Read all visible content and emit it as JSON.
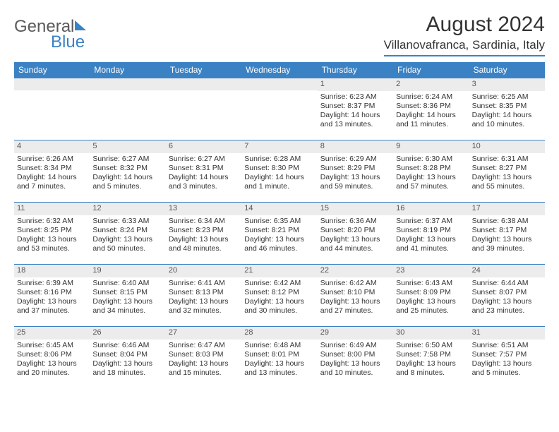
{
  "brand": {
    "part1": "General",
    "part2": "Blue"
  },
  "title": "August 2024",
  "location": "Villanovafranca, Sardinia, Italy",
  "colors": {
    "accent": "#3b82c4",
    "dayStripe": "#ececec",
    "text": "#333333",
    "logoGray": "#5a5a5a",
    "background": "#ffffff"
  },
  "weekdays": [
    "Sunday",
    "Monday",
    "Tuesday",
    "Wednesday",
    "Thursday",
    "Friday",
    "Saturday"
  ],
  "startOffset": 4,
  "days": [
    {
      "n": 1,
      "sr": "6:23 AM",
      "ss": "8:37 PM",
      "dl": "14 hours and 13 minutes."
    },
    {
      "n": 2,
      "sr": "6:24 AM",
      "ss": "8:36 PM",
      "dl": "14 hours and 11 minutes."
    },
    {
      "n": 3,
      "sr": "6:25 AM",
      "ss": "8:35 PM",
      "dl": "14 hours and 10 minutes."
    },
    {
      "n": 4,
      "sr": "6:26 AM",
      "ss": "8:34 PM",
      "dl": "14 hours and 7 minutes."
    },
    {
      "n": 5,
      "sr": "6:27 AM",
      "ss": "8:32 PM",
      "dl": "14 hours and 5 minutes."
    },
    {
      "n": 6,
      "sr": "6:27 AM",
      "ss": "8:31 PM",
      "dl": "14 hours and 3 minutes."
    },
    {
      "n": 7,
      "sr": "6:28 AM",
      "ss": "8:30 PM",
      "dl": "14 hours and 1 minute."
    },
    {
      "n": 8,
      "sr": "6:29 AM",
      "ss": "8:29 PM",
      "dl": "13 hours and 59 minutes."
    },
    {
      "n": 9,
      "sr": "6:30 AM",
      "ss": "8:28 PM",
      "dl": "13 hours and 57 minutes."
    },
    {
      "n": 10,
      "sr": "6:31 AM",
      "ss": "8:27 PM",
      "dl": "13 hours and 55 minutes."
    },
    {
      "n": 11,
      "sr": "6:32 AM",
      "ss": "8:25 PM",
      "dl": "13 hours and 53 minutes."
    },
    {
      "n": 12,
      "sr": "6:33 AM",
      "ss": "8:24 PM",
      "dl": "13 hours and 50 minutes."
    },
    {
      "n": 13,
      "sr": "6:34 AM",
      "ss": "8:23 PM",
      "dl": "13 hours and 48 minutes."
    },
    {
      "n": 14,
      "sr": "6:35 AM",
      "ss": "8:21 PM",
      "dl": "13 hours and 46 minutes."
    },
    {
      "n": 15,
      "sr": "6:36 AM",
      "ss": "8:20 PM",
      "dl": "13 hours and 44 minutes."
    },
    {
      "n": 16,
      "sr": "6:37 AM",
      "ss": "8:19 PM",
      "dl": "13 hours and 41 minutes."
    },
    {
      "n": 17,
      "sr": "6:38 AM",
      "ss": "8:17 PM",
      "dl": "13 hours and 39 minutes."
    },
    {
      "n": 18,
      "sr": "6:39 AM",
      "ss": "8:16 PM",
      "dl": "13 hours and 37 minutes."
    },
    {
      "n": 19,
      "sr": "6:40 AM",
      "ss": "8:15 PM",
      "dl": "13 hours and 34 minutes."
    },
    {
      "n": 20,
      "sr": "6:41 AM",
      "ss": "8:13 PM",
      "dl": "13 hours and 32 minutes."
    },
    {
      "n": 21,
      "sr": "6:42 AM",
      "ss": "8:12 PM",
      "dl": "13 hours and 30 minutes."
    },
    {
      "n": 22,
      "sr": "6:42 AM",
      "ss": "8:10 PM",
      "dl": "13 hours and 27 minutes."
    },
    {
      "n": 23,
      "sr": "6:43 AM",
      "ss": "8:09 PM",
      "dl": "13 hours and 25 minutes."
    },
    {
      "n": 24,
      "sr": "6:44 AM",
      "ss": "8:07 PM",
      "dl": "13 hours and 23 minutes."
    },
    {
      "n": 25,
      "sr": "6:45 AM",
      "ss": "8:06 PM",
      "dl": "13 hours and 20 minutes."
    },
    {
      "n": 26,
      "sr": "6:46 AM",
      "ss": "8:04 PM",
      "dl": "13 hours and 18 minutes."
    },
    {
      "n": 27,
      "sr": "6:47 AM",
      "ss": "8:03 PM",
      "dl": "13 hours and 15 minutes."
    },
    {
      "n": 28,
      "sr": "6:48 AM",
      "ss": "8:01 PM",
      "dl": "13 hours and 13 minutes."
    },
    {
      "n": 29,
      "sr": "6:49 AM",
      "ss": "8:00 PM",
      "dl": "13 hours and 10 minutes."
    },
    {
      "n": 30,
      "sr": "6:50 AM",
      "ss": "7:58 PM",
      "dl": "13 hours and 8 minutes."
    },
    {
      "n": 31,
      "sr": "6:51 AM",
      "ss": "7:57 PM",
      "dl": "13 hours and 5 minutes."
    }
  ],
  "labels": {
    "sunrise": "Sunrise: ",
    "sunset": "Sunset: ",
    "daylight": "Daylight: "
  }
}
